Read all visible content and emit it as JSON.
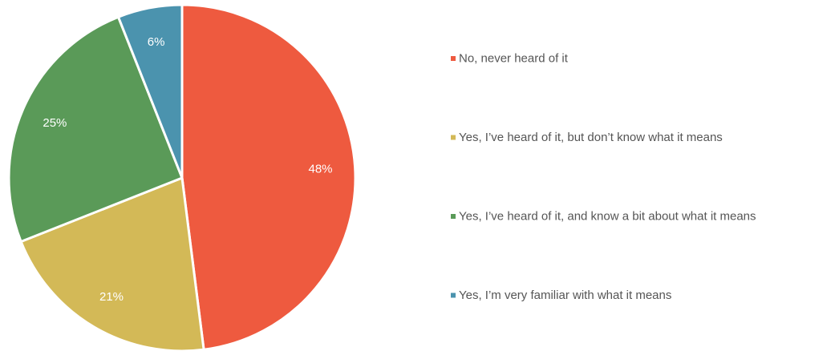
{
  "chart_data": {
    "type": "pie",
    "title": "",
    "start_angle_deg": 0,
    "direction": "clockwise",
    "legend_position": "right",
    "slices": [
      {
        "label": "No, never heard of it",
        "value": 48,
        "display": "48%",
        "color": "#EE5A3F"
      },
      {
        "label": "Yes, I’ve heard of it, but don’t know what it means",
        "value": 21,
        "display": "21%",
        "color": "#D3B957"
      },
      {
        "label": "Yes, I’ve heard of it, and know a bit about what it means",
        "value": 25,
        "display": "25%",
        "color": "#5A9A58"
      },
      {
        "label": "Yes, I’m very familiar with what it means",
        "value": 6,
        "display": "6%",
        "color": "#4B93AE"
      }
    ]
  }
}
